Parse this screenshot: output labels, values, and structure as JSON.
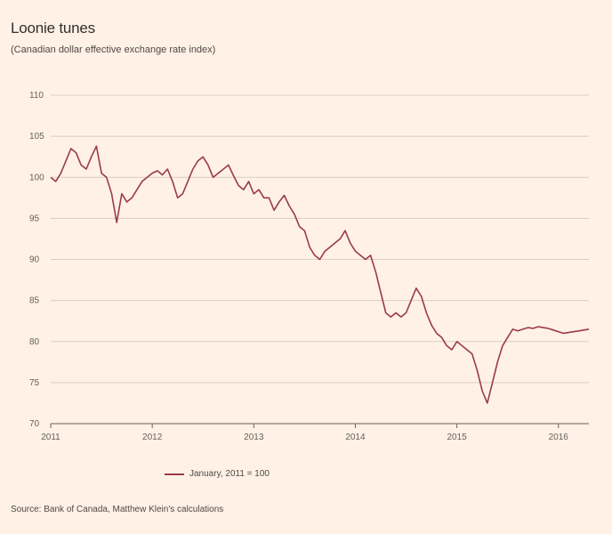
{
  "header": {
    "title": "Loonie tunes",
    "subtitle": "(Canadian dollar effective exchange rate index)"
  },
  "footer": {
    "source": "Source: Bank of Canada, Matthew Klein's calculations"
  },
  "colors": {
    "background": "#fff1e5",
    "series": "#9b3a4d",
    "grid": "#d9cec4",
    "axis_text": "#66605c"
  },
  "chart_data": {
    "type": "line",
    "title": "Loonie tunes",
    "subtitle": "(Canadian dollar effective exchange rate index)",
    "xlabel": "",
    "ylabel": "",
    "ylim": [
      70,
      110
    ],
    "xlim": [
      2011.0,
      2016.3
    ],
    "yticks": [
      70,
      75,
      80,
      85,
      90,
      95,
      100,
      105,
      110
    ],
    "xticks": [
      {
        "value": 2011,
        "label": "2011"
      },
      {
        "value": 2012,
        "label": "2012"
      },
      {
        "value": 2013,
        "label": "2013"
      },
      {
        "value": 2014,
        "label": "2014"
      },
      {
        "value": 2015,
        "label": "2015"
      },
      {
        "value": 2016,
        "label": "2016"
      }
    ],
    "grid": true,
    "legend": "bottom-left",
    "series": [
      {
        "name": "January, 2011 = 100",
        "x": [
          2011.0,
          2011.05,
          2011.1,
          2011.15,
          2011.2,
          2011.25,
          2011.3,
          2011.35,
          2011.4,
          2011.45,
          2011.5,
          2011.55,
          2011.6,
          2011.65,
          2011.7,
          2011.75,
          2011.8,
          2011.85,
          2011.9,
          2011.95,
          2012.0,
          2012.05,
          2012.1,
          2012.15,
          2012.2,
          2012.25,
          2012.3,
          2012.35,
          2012.4,
          2012.45,
          2012.5,
          2012.55,
          2012.6,
          2012.65,
          2012.7,
          2012.75,
          2012.8,
          2012.85,
          2012.9,
          2012.95,
          2013.0,
          2013.05,
          2013.1,
          2013.15,
          2013.2,
          2013.25,
          2013.3,
          2013.35,
          2013.4,
          2013.45,
          2013.5,
          2013.55,
          2013.6,
          2013.65,
          2013.7,
          2013.75,
          2013.8,
          2013.85,
          2013.9,
          2013.95,
          2014.0,
          2014.05,
          2014.1,
          2014.15,
          2014.2,
          2014.25,
          2014.3,
          2014.35,
          2014.4,
          2014.45,
          2014.5,
          2014.55,
          2014.6,
          2014.65,
          2014.7,
          2014.75,
          2014.8,
          2014.85,
          2014.9,
          2014.95,
          2015.0,
          2015.05,
          2015.1,
          2015.15,
          2015.2,
          2015.25,
          2015.3,
          2015.35,
          2015.4,
          2015.45,
          2015.5,
          2015.55,
          2015.6,
          2015.65,
          2015.7,
          2015.75,
          2015.8,
          2015.85,
          2015.9,
          2015.95,
          2016.0,
          2016.05,
          2016.1,
          2016.15,
          2016.2,
          2016.25,
          2016.3
        ],
        "values": [
          100.0,
          99.5,
          100.5,
          102.0,
          103.5,
          103.0,
          101.5,
          101.0,
          102.5,
          103.8,
          100.5,
          100.0,
          98.0,
          94.5,
          98.0,
          97.0,
          97.5,
          98.5,
          99.5,
          100.0,
          100.5,
          100.8,
          100.3,
          101.0,
          99.5,
          97.5,
          98.0,
          99.5,
          101.0,
          102.0,
          102.5,
          101.5,
          100.0,
          100.5,
          101.0,
          101.5,
          100.2,
          99.0,
          98.5,
          99.5,
          98.0,
          98.5,
          97.5,
          97.5,
          96.0,
          97.0,
          97.8,
          96.5,
          95.5,
          94.0,
          93.5,
          91.5,
          90.5,
          90.0,
          91.0,
          91.5,
          92.0,
          92.5,
          93.5,
          92.0,
          91.0,
          90.5,
          90.0,
          90.5,
          88.5,
          86.0,
          83.5,
          83.0,
          83.5,
          83.0,
          83.5,
          85.0,
          86.5,
          85.5,
          83.5,
          82.0,
          81.0,
          80.5,
          79.5,
          79.0,
          80.0,
          79.5,
          79.0,
          78.5,
          76.5,
          74.0,
          72.5,
          75.0,
          77.5,
          79.5,
          80.5,
          81.5,
          81.3,
          81.5,
          81.7,
          81.6,
          81.8,
          81.7,
          81.6,
          81.4,
          81.2,
          81.0,
          81.1,
          81.2,
          81.3,
          81.4,
          81.5
        ]
      }
    ]
  }
}
